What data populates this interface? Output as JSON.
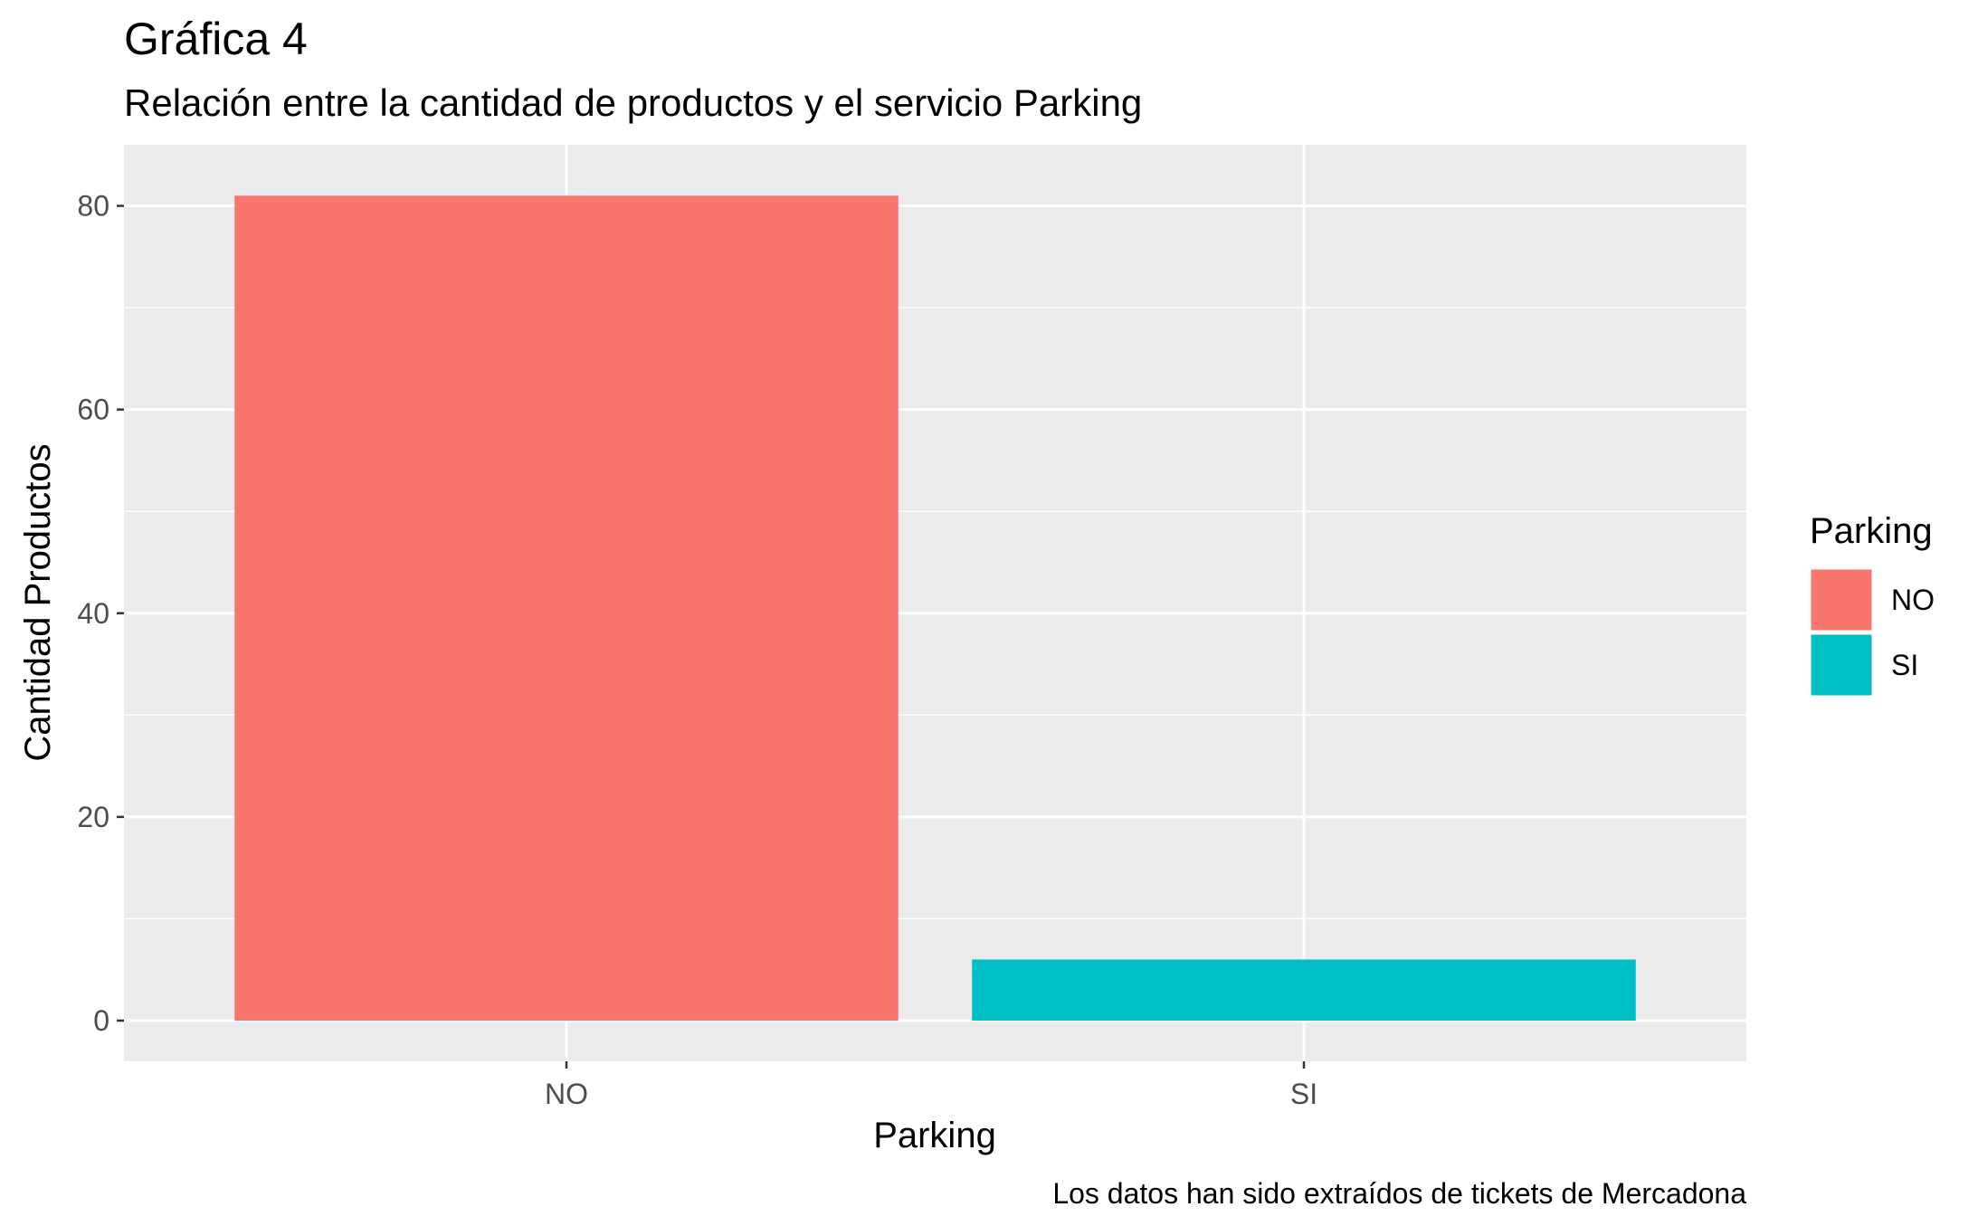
{
  "chart_data": {
    "type": "bar",
    "title": "Gráfica 4",
    "subtitle": "Relación entre la cantidad de productos y el servicio Parking",
    "caption": "Los datos han sido extraídos de tickets de Mercadona",
    "xlabel": "Parking",
    "ylabel": "Cantidad Productos",
    "categories": [
      "NO",
      "SI"
    ],
    "values": [
      81,
      6
    ],
    "colors": [
      "#F8766D",
      "#00BFC4"
    ],
    "ylim": [
      -4,
      86
    ],
    "yticks": [
      0,
      20,
      40,
      60,
      80
    ],
    "grid": true,
    "legend": {
      "title": "Parking",
      "position": "right",
      "items": [
        {
          "label": "NO",
          "color": "#F8766D"
        },
        {
          "label": "SI",
          "color": "#00BFC4"
        }
      ]
    },
    "panel_background": "#EBEBEB"
  }
}
